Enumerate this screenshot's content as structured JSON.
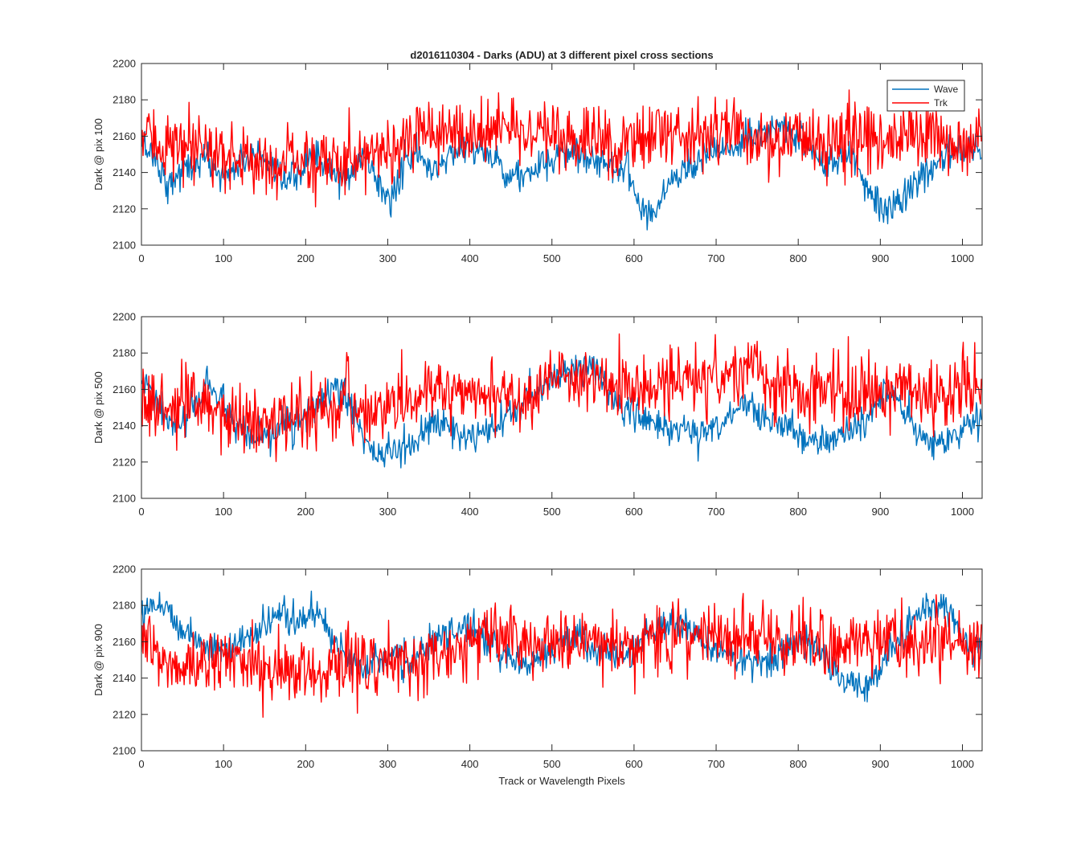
{
  "figure": {
    "title": "d2016110304 - Darks (ADU) at 3 different pixel cross sections",
    "xlabel": "Track or Wavelength Pixels",
    "legend_position": "top-right of first panel"
  },
  "chart_data": [
    {
      "type": "line",
      "title": "d2016110304 - Darks (ADU) at 3 different pixel cross sections",
      "xlabel": "",
      "ylabel": "Dark @ pix 100",
      "xlim": [
        0,
        1024
      ],
      "ylim": [
        2100,
        2200
      ],
      "xticks": [
        0,
        100,
        200,
        300,
        400,
        500,
        600,
        700,
        800,
        900,
        1000
      ],
      "yticks": [
        2100,
        2120,
        2140,
        2160,
        2180,
        2200
      ],
      "legend": [
        "Wave",
        "Trk"
      ],
      "grid": false,
      "x_sampling": "x = 0..1023 step 16",
      "series": [
        {
          "name": "Wave",
          "color": "#0072BD",
          "values": [
            2157,
            2149,
            2133,
            2141,
            2144,
            2148,
            2138,
            2142,
            2148,
            2149,
            2138,
            2135,
            2139,
            2152,
            2143,
            2136,
            2139,
            2150,
            2135,
            2123,
            2146,
            2150,
            2141,
            2146,
            2153,
            2155,
            2150,
            2147,
            2140,
            2137,
            2142,
            2144,
            2149,
            2153,
            2148,
            2146,
            2143,
            2143,
            2121,
            2117,
            2133,
            2140,
            2146,
            2150,
            2153,
            2150,
            2159,
            2157,
            2163,
            2166,
            2160,
            2153,
            2144,
            2147,
            2150,
            2137,
            2123,
            2121,
            2126,
            2133,
            2141,
            2147,
            2152,
            2154
          ]
        },
        {
          "name": "Trk",
          "color": "#FF0000",
          "values": [
            2160,
            2158,
            2155,
            2152,
            2150,
            2154,
            2150,
            2148,
            2147,
            2146,
            2145,
            2146,
            2148,
            2146,
            2145,
            2144,
            2150,
            2152,
            2155,
            2153,
            2155,
            2158,
            2160,
            2161,
            2162,
            2160,
            2163,
            2166,
            2164,
            2165,
            2160,
            2158,
            2157,
            2155,
            2158,
            2157,
            2156,
            2159,
            2160,
            2162,
            2163,
            2161,
            2160,
            2162,
            2164,
            2165,
            2160,
            2157,
            2156,
            2158,
            2160,
            2158,
            2157,
            2159,
            2160,
            2162,
            2158,
            2156,
            2157,
            2160,
            2158,
            2157,
            2156,
            2158
          ]
        }
      ]
    },
    {
      "type": "line",
      "xlabel": "",
      "ylabel": "Dark @ pix 500",
      "xlim": [
        0,
        1024
      ],
      "ylim": [
        2100,
        2200
      ],
      "xticks": [
        0,
        100,
        200,
        300,
        400,
        500,
        600,
        700,
        800,
        900,
        1000
      ],
      "yticks": [
        2100,
        2120,
        2140,
        2160,
        2180,
        2200
      ],
      "grid": false,
      "x_sampling": "x = 0..1023 step 16",
      "series": [
        {
          "name": "Wave",
          "color": "#0072BD",
          "values": [
            2164,
            2155,
            2142,
            2140,
            2150,
            2165,
            2155,
            2140,
            2133,
            2132,
            2136,
            2143,
            2140,
            2150,
            2155,
            2160,
            2152,
            2130,
            2124,
            2125,
            2128,
            2132,
            2140,
            2140,
            2138,
            2132,
            2133,
            2139,
            2146,
            2151,
            2158,
            2166,
            2168,
            2172,
            2175,
            2165,
            2155,
            2148,
            2145,
            2142,
            2138,
            2140,
            2135,
            2136,
            2142,
            2147,
            2152,
            2148,
            2143,
            2139,
            2136,
            2131,
            2130,
            2135,
            2138,
            2142,
            2153,
            2160,
            2148,
            2138,
            2130,
            2130,
            2135,
            2142
          ]
        },
        {
          "name": "Trk",
          "color": "#FF0000",
          "values": [
            2155,
            2150,
            2148,
            2152,
            2150,
            2148,
            2147,
            2145,
            2143,
            2140,
            2142,
            2144,
            2145,
            2147,
            2149,
            2152,
            2150,
            2147,
            2149,
            2151,
            2153,
            2155,
            2158,
            2158,
            2160,
            2161,
            2158,
            2157,
            2156,
            2158,
            2160,
            2162,
            2164,
            2165,
            2163,
            2166,
            2164,
            2162,
            2160,
            2161,
            2163,
            2165,
            2167,
            2166,
            2165,
            2170,
            2172,
            2168,
            2160,
            2158,
            2157,
            2159,
            2160,
            2158,
            2157,
            2159,
            2160,
            2161,
            2162,
            2158,
            2157,
            2159,
            2160,
            2158
          ]
        }
      ]
    },
    {
      "type": "line",
      "xlabel": "Track or Wavelength Pixels",
      "ylabel": "Dark @ pix 900",
      "xlim": [
        0,
        1024
      ],
      "ylim": [
        2100,
        2200
      ],
      "xticks": [
        0,
        100,
        200,
        300,
        400,
        500,
        600,
        700,
        800,
        900,
        1000
      ],
      "yticks": [
        2100,
        2120,
        2140,
        2160,
        2180,
        2200
      ],
      "grid": false,
      "x_sampling": "x = 0..1023 step 16",
      "series": [
        {
          "name": "Wave",
          "color": "#0072BD",
          "values": [
            2178,
            2182,
            2178,
            2168,
            2162,
            2158,
            2155,
            2158,
            2162,
            2165,
            2172,
            2176,
            2170,
            2178,
            2168,
            2158,
            2152,
            2148,
            2150,
            2152,
            2148,
            2152,
            2158,
            2162,
            2166,
            2170,
            2165,
            2155,
            2149,
            2148,
            2152,
            2155,
            2160,
            2163,
            2158,
            2155,
            2152,
            2153,
            2160,
            2165,
            2170,
            2172,
            2165,
            2158,
            2155,
            2152,
            2150,
            2148,
            2150,
            2158,
            2160,
            2162,
            2152,
            2140,
            2138,
            2135,
            2140,
            2158,
            2164,
            2175,
            2180,
            2180,
            2168,
            2156
          ]
        },
        {
          "name": "Trk",
          "color": "#FF0000",
          "values": [
            2160,
            2152,
            2148,
            2145,
            2147,
            2150,
            2152,
            2150,
            2148,
            2146,
            2145,
            2143,
            2142,
            2144,
            2146,
            2148,
            2150,
            2150,
            2147,
            2146,
            2148,
            2150,
            2152,
            2155,
            2158,
            2160,
            2162,
            2163,
            2160,
            2158,
            2157,
            2159,
            2160,
            2161,
            2163,
            2160,
            2158,
            2157,
            2159,
            2160,
            2162,
            2163,
            2165,
            2166,
            2164,
            2162,
            2163,
            2165,
            2160,
            2160,
            2162,
            2163,
            2160,
            2158,
            2159,
            2160,
            2162,
            2160,
            2158,
            2157,
            2159,
            2160,
            2158,
            2157
          ]
        }
      ]
    }
  ]
}
